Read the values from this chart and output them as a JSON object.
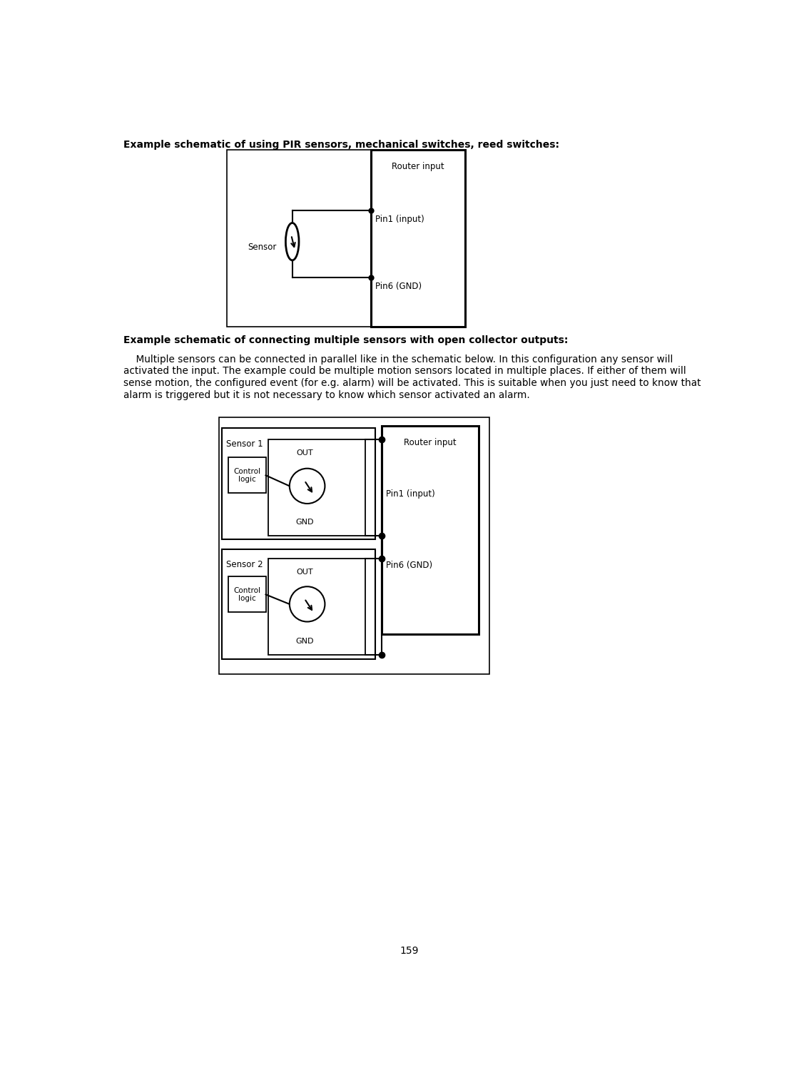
{
  "title1": "Example schematic of using PIR sensors, mechanical switches, reed switches:",
  "title2": "Example schematic of connecting multiple sensors with open collector outputs:",
  "body_line1": "    Multiple sensors can be connected in parallel like in the schematic below. In this configuration any sensor will",
  "body_line2": "activated the input. The example could be multiple motion sensors located in multiple places. If either of them will",
  "body_line3": "sense motion, the configured event (for e.g. alarm) will be activated. This is suitable when you just need to know that",
  "body_line4": "alarm is triggered but it is not necessary to know which sensor activated an alarm.",
  "page_number": "159",
  "bg_color": "#ffffff",
  "line_color": "#000000",
  "text_color": "#000000"
}
